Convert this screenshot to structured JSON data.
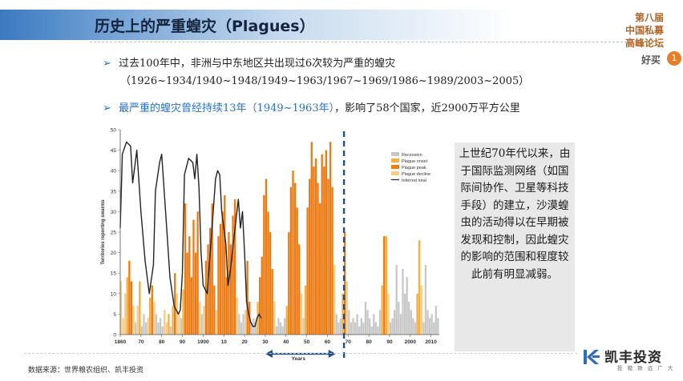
{
  "header": {
    "title": "历史上的严重蝗灾（Plagues）",
    "event_name_lines": [
      "第八届",
      "中国私募",
      "高峰论坛"
    ],
    "event_sub": "好买",
    "event_badge": "1"
  },
  "bullets": {
    "b1_line1": "过去100年中，非洲与中东地区共出现过6次较为严重的蝗灾",
    "b1_line2": "（1926~1934/1940~1948/1949~1963/1967~1969/1986~1989/2003~2005）",
    "b2_highlight": "最严重的蝗灾曾经持续13年（1949~1963年）",
    "b2_rest": "，影响了58个国家，近2900万平方公里",
    "marker": "➢"
  },
  "note": {
    "text": "上世纪70年代以来，由于国际监测网络（如国际间协作、卫星等科技手段）的建立，沙漠蝗虫的活动得以在早期被发现和控制，因此蝗灾的影响的范围和程度较此前有明显减弱。"
  },
  "footer": {
    "source": "数据来源：世界粮农组织、凯丰投资",
    "logo_name": "凯丰投资",
    "logo_tag": "投 稳 致 远 广 大"
  },
  "chart_data": {
    "type": "bar",
    "ylabel": "Territories reporting swarms",
    "xlabel": "Years",
    "ylim": [
      0,
      50
    ],
    "yticks": [
      0,
      5,
      10,
      15,
      20,
      25,
      30,
      35,
      40,
      45,
      50
    ],
    "xlim": [
      1860,
      2014
    ],
    "xticks": [
      {
        "year": 1860,
        "label": "1860"
      },
      {
        "year": 1870,
        "label": "70"
      },
      {
        "year": 1880,
        "label": "80"
      },
      {
        "year": 1890,
        "label": "90"
      },
      {
        "year": 1900,
        "label": "1900"
      },
      {
        "year": 1910,
        "label": "10"
      },
      {
        "year": 1920,
        "label": "20"
      },
      {
        "year": 1930,
        "label": "30"
      },
      {
        "year": 1940,
        "label": "40"
      },
      {
        "year": 1950,
        "label": "50"
      },
      {
        "year": 1960,
        "label": "60"
      },
      {
        "year": 1970,
        "label": "70"
      },
      {
        "year": 1980,
        "label": "80"
      },
      {
        "year": 1990,
        "label": "90"
      },
      {
        "year": 2000,
        "label": "2000"
      },
      {
        "year": 2010,
        "label": "2010"
      }
    ],
    "legend": [
      {
        "name": "Recession",
        "color": "#c8c8c8"
      },
      {
        "name": "Plague onset",
        "color": "#f6ae3c"
      },
      {
        "name": "Plague peak",
        "color": "#f07a12"
      },
      {
        "name": "Plague decline",
        "color": "#f8cd8a"
      },
      {
        "name": "Inferred total",
        "color": "#222222"
      }
    ],
    "legend_position": "top-right",
    "bars": [
      {
        "year": 1860,
        "value": 13,
        "phase": "Plague decline"
      },
      {
        "year": 1861,
        "value": 4,
        "phase": "Plague decline"
      },
      {
        "year": 1862,
        "value": 10,
        "phase": "Plague decline"
      },
      {
        "year": 1863,
        "value": 14,
        "phase": "Plague onset"
      },
      {
        "year": 1864,
        "value": 18,
        "phase": "Plague peak"
      },
      {
        "year": 1865,
        "value": 13,
        "phase": "Plague peak"
      },
      {
        "year": 1866,
        "value": 7,
        "phase": "Plague decline"
      },
      {
        "year": 1867,
        "value": 3,
        "phase": "Recession"
      },
      {
        "year": 1868,
        "value": 7,
        "phase": "Plague decline"
      },
      {
        "year": 1869,
        "value": 13,
        "phase": "Plague onset"
      },
      {
        "year": 1870,
        "value": 2,
        "phase": "Recession"
      },
      {
        "year": 1871,
        "value": 5,
        "phase": "Recession"
      },
      {
        "year": 1872,
        "value": 3,
        "phase": "Recession"
      },
      {
        "year": 1873,
        "value": 4,
        "phase": "Plague decline"
      },
      {
        "year": 1874,
        "value": 9,
        "phase": "Plague onset"
      },
      {
        "year": 1875,
        "value": 12,
        "phase": "Plague peak"
      },
      {
        "year": 1876,
        "value": 8,
        "phase": "Plague decline"
      },
      {
        "year": 1877,
        "value": 5,
        "phase": "Recession"
      },
      {
        "year": 1878,
        "value": 3,
        "phase": "Recession"
      },
      {
        "year": 1879,
        "value": 4,
        "phase": "Recession"
      },
      {
        "year": 1880,
        "value": 2,
        "phase": "Recession"
      },
      {
        "year": 1881,
        "value": 6,
        "phase": "Plague decline"
      },
      {
        "year": 1882,
        "value": 3,
        "phase": "Plague decline"
      },
      {
        "year": 1883,
        "value": 5,
        "phase": "Plague onset"
      },
      {
        "year": 1884,
        "value": 2,
        "phase": "Recession"
      },
      {
        "year": 1885,
        "value": 7,
        "phase": "Plague onset"
      },
      {
        "year": 1886,
        "value": 15,
        "phase": "Plague peak"
      },
      {
        "year": 1887,
        "value": 10,
        "phase": "Plague decline"
      },
      {
        "year": 1888,
        "value": 5,
        "phase": "Plague decline"
      },
      {
        "year": 1889,
        "value": 4,
        "phase": "Recession"
      },
      {
        "year": 1890,
        "value": 11,
        "phase": "Plague onset"
      },
      {
        "year": 1891,
        "value": 32,
        "phase": "Plague peak"
      },
      {
        "year": 1892,
        "value": 20,
        "phase": "Plague peak"
      },
      {
        "year": 1893,
        "value": 24,
        "phase": "Plague peak"
      },
      {
        "year": 1894,
        "value": 14,
        "phase": "Plague peak"
      },
      {
        "year": 1895,
        "value": 28,
        "phase": "Plague peak"
      },
      {
        "year": 1896,
        "value": 20,
        "phase": "Plague peak"
      },
      {
        "year": 1897,
        "value": 30,
        "phase": "Plague peak"
      },
      {
        "year": 1898,
        "value": 8,
        "phase": "Plague decline"
      },
      {
        "year": 1899,
        "value": 5,
        "phase": "Recession"
      },
      {
        "year": 1900,
        "value": 7,
        "phase": "Plague decline"
      },
      {
        "year": 1901,
        "value": 18,
        "phase": "Plague peak"
      },
      {
        "year": 1902,
        "value": 22,
        "phase": "Plague peak"
      },
      {
        "year": 1903,
        "value": 26,
        "phase": "Plague peak"
      },
      {
        "year": 1904,
        "value": 32,
        "phase": "Plague peak"
      },
      {
        "year": 1905,
        "value": 12,
        "phase": "Plague peak"
      },
      {
        "year": 1906,
        "value": 6,
        "phase": "Plague decline"
      },
      {
        "year": 1907,
        "value": 24,
        "phase": "Plague peak"
      },
      {
        "year": 1908,
        "value": 27,
        "phase": "Plague peak"
      },
      {
        "year": 1909,
        "value": 30,
        "phase": "Plague peak"
      },
      {
        "year": 1910,
        "value": 34,
        "phase": "Plague peak"
      },
      {
        "year": 1911,
        "value": 14,
        "phase": "Plague peak"
      },
      {
        "year": 1912,
        "value": 25,
        "phase": "Plague peak"
      },
      {
        "year": 1913,
        "value": 22,
        "phase": "Plague peak"
      },
      {
        "year": 1914,
        "value": 29,
        "phase": "Plague peak"
      },
      {
        "year": 1915,
        "value": 33,
        "phase": "Plague peak"
      },
      {
        "year": 1916,
        "value": 9,
        "phase": "Plague decline"
      },
      {
        "year": 1917,
        "value": 5,
        "phase": "Recession"
      },
      {
        "year": 1918,
        "value": 3,
        "phase": "Recession"
      },
      {
        "year": 1919,
        "value": 5,
        "phase": "Recession"
      },
      {
        "year": 1920,
        "value": 6,
        "phase": "Plague decline"
      },
      {
        "year": 1921,
        "value": 18,
        "phase": "Plague peak"
      },
      {
        "year": 1922,
        "value": 8,
        "phase": "Plague peak"
      },
      {
        "year": 1923,
        "value": 3,
        "phase": "Recession"
      },
      {
        "year": 1924,
        "value": 4,
        "phase": "Recession"
      },
      {
        "year": 1925,
        "value": 3,
        "phase": "Recession"
      },
      {
        "year": 1926,
        "value": 8,
        "phase": "Plague onset"
      },
      {
        "year": 1927,
        "value": 14,
        "phase": "Plague peak"
      },
      {
        "year": 1928,
        "value": 19,
        "phase": "Plague peak"
      },
      {
        "year": 1929,
        "value": 34,
        "phase": "Plague peak"
      },
      {
        "year": 1930,
        "value": 38,
        "phase": "Plague peak"
      },
      {
        "year": 1931,
        "value": 30,
        "phase": "Plague peak"
      },
      {
        "year": 1932,
        "value": 25,
        "phase": "Plague peak"
      },
      {
        "year": 1933,
        "value": 16,
        "phase": "Plague peak"
      },
      {
        "year": 1934,
        "value": 8,
        "phase": "Plague decline"
      },
      {
        "year": 1935,
        "value": 2,
        "phase": "Recession"
      },
      {
        "year": 1936,
        "value": 4,
        "phase": "Recession"
      },
      {
        "year": 1937,
        "value": 3,
        "phase": "Recession"
      },
      {
        "year": 1938,
        "value": 2,
        "phase": "Recession"
      },
      {
        "year": 1939,
        "value": 4,
        "phase": "Recession"
      },
      {
        "year": 1940,
        "value": 7,
        "phase": "Plague onset"
      },
      {
        "year": 1941,
        "value": 25,
        "phase": "Plague peak"
      },
      {
        "year": 1942,
        "value": 36,
        "phase": "Plague peak"
      },
      {
        "year": 1943,
        "value": 40,
        "phase": "Plague peak"
      },
      {
        "year": 1944,
        "value": 37,
        "phase": "Plague peak"
      },
      {
        "year": 1945,
        "value": 31,
        "phase": "Plague peak"
      },
      {
        "year": 1946,
        "value": 22,
        "phase": "Plague peak"
      },
      {
        "year": 1947,
        "value": 10,
        "phase": "Plague decline"
      },
      {
        "year": 1948,
        "value": 4,
        "phase": "Recession"
      },
      {
        "year": 1949,
        "value": 12,
        "phase": "Plague onset"
      },
      {
        "year": 1950,
        "value": 31,
        "phase": "Plague peak"
      },
      {
        "year": 1951,
        "value": 38,
        "phase": "Plague peak"
      },
      {
        "year": 1952,
        "value": 47,
        "phase": "Plague peak"
      },
      {
        "year": 1953,
        "value": 41,
        "phase": "Plague peak"
      },
      {
        "year": 1954,
        "value": 43,
        "phase": "Plague peak"
      },
      {
        "year": 1955,
        "value": 37,
        "phase": "Plague peak"
      },
      {
        "year": 1956,
        "value": 32,
        "phase": "Plague peak"
      },
      {
        "year": 1957,
        "value": 44,
        "phase": "Plague peak"
      },
      {
        "year": 1958,
        "value": 41,
        "phase": "Plague peak"
      },
      {
        "year": 1959,
        "value": 45,
        "phase": "Plague peak"
      },
      {
        "year": 1960,
        "value": 38,
        "phase": "Plague peak"
      },
      {
        "year": 1961,
        "value": 47,
        "phase": "Plague peak"
      },
      {
        "year": 1962,
        "value": 36,
        "phase": "Plague peak"
      },
      {
        "year": 1963,
        "value": 17,
        "phase": "Plague decline"
      },
      {
        "year": 1964,
        "value": 5,
        "phase": "Recession"
      },
      {
        "year": 1965,
        "value": 3,
        "phase": "Recession"
      },
      {
        "year": 1966,
        "value": 4,
        "phase": "Recession"
      },
      {
        "year": 1967,
        "value": 10,
        "phase": "Plague onset"
      },
      {
        "year": 1968,
        "value": 25,
        "phase": "Plague peak"
      },
      {
        "year": 1969,
        "value": 13,
        "phase": "Plague decline"
      },
      {
        "year": 1970,
        "value": 6,
        "phase": "Recession"
      },
      {
        "year": 1971,
        "value": 3,
        "phase": "Recession"
      },
      {
        "year": 1972,
        "value": 4,
        "phase": "Recession"
      },
      {
        "year": 1973,
        "value": 3,
        "phase": "Recession"
      },
      {
        "year": 1974,
        "value": 5,
        "phase": "Recession"
      },
      {
        "year": 1975,
        "value": 2,
        "phase": "Recession"
      },
      {
        "year": 1976,
        "value": 4,
        "phase": "Recession"
      },
      {
        "year": 1977,
        "value": 3,
        "phase": "Recession"
      },
      {
        "year": 1978,
        "value": 8,
        "phase": "Recession"
      },
      {
        "year": 1979,
        "value": 6,
        "phase": "Recession"
      },
      {
        "year": 1980,
        "value": 4,
        "phase": "Recession"
      },
      {
        "year": 1981,
        "value": 2,
        "phase": "Recession"
      },
      {
        "year": 1982,
        "value": 5,
        "phase": "Recession"
      },
      {
        "year": 1983,
        "value": 3,
        "phase": "Recession"
      },
      {
        "year": 1984,
        "value": 2,
        "phase": "Recession"
      },
      {
        "year": 1985,
        "value": 6,
        "phase": "Recession"
      },
      {
        "year": 1986,
        "value": 12,
        "phase": "Plague onset"
      },
      {
        "year": 1987,
        "value": 24,
        "phase": "Plague peak"
      },
      {
        "year": 1988,
        "value": 24,
        "phase": "Plague onset"
      },
      {
        "year": 1989,
        "value": 10,
        "phase": "Plague decline"
      },
      {
        "year": 1990,
        "value": 3,
        "phase": "Recession"
      },
      {
        "year": 1991,
        "value": 4,
        "phase": "Recession"
      },
      {
        "year": 1992,
        "value": 6,
        "phase": "Recession"
      },
      {
        "year": 1993,
        "value": 17,
        "phase": "Recession"
      },
      {
        "year": 1994,
        "value": 8,
        "phase": "Recession"
      },
      {
        "year": 1995,
        "value": 5,
        "phase": "Recession"
      },
      {
        "year": 1996,
        "value": 16,
        "phase": "Recession"
      },
      {
        "year": 1997,
        "value": 10,
        "phase": "Recession"
      },
      {
        "year": 1998,
        "value": 14,
        "phase": "Recession"
      },
      {
        "year": 1999,
        "value": 8,
        "phase": "Recession"
      },
      {
        "year": 2000,
        "value": 6,
        "phase": "Recession"
      },
      {
        "year": 2001,
        "value": 4,
        "phase": "Recession"
      },
      {
        "year": 2002,
        "value": 3,
        "phase": "Recession"
      },
      {
        "year": 2003,
        "value": 10,
        "phase": "Plague onset"
      },
      {
        "year": 2004,
        "value": 23,
        "phase": "Plague onset"
      },
      {
        "year": 2005,
        "value": 12,
        "phase": "Plague decline"
      },
      {
        "year": 2006,
        "value": 3,
        "phase": "Recession"
      },
      {
        "year": 2007,
        "value": 17,
        "phase": "Recession"
      },
      {
        "year": 2008,
        "value": 6,
        "phase": "Recession"
      },
      {
        "year": 2009,
        "value": 4,
        "phase": "Recession"
      },
      {
        "year": 2010,
        "value": 5,
        "phase": "Recession"
      },
      {
        "year": 2011,
        "value": 3,
        "phase": "Recession"
      },
      {
        "year": 2012,
        "value": 7,
        "phase": "Recession"
      },
      {
        "year": 2013,
        "value": 4,
        "phase": "Recession"
      }
    ],
    "inferred_total": {
      "name": "Inferred total",
      "x": [
        1860,
        1861,
        1863,
        1865,
        1866,
        1868,
        1870,
        1872,
        1874,
        1876,
        1877,
        1879,
        1880,
        1882,
        1884,
        1886,
        1888,
        1889,
        1890,
        1891,
        1893,
        1895,
        1896,
        1897,
        1898,
        1899,
        1900,
        1902,
        1904,
        1906,
        1907,
        1908,
        1909,
        1911,
        1912,
        1913,
        1915,
        1917,
        1918,
        1919,
        1920,
        1921,
        1922,
        1923,
        1924,
        1925,
        1926,
        1927,
        1928
      ],
      "y": [
        26,
        44,
        47,
        46,
        37,
        45,
        30,
        18,
        10,
        17,
        35,
        42,
        44,
        29,
        14,
        7,
        5,
        6,
        15,
        39,
        43,
        42,
        38,
        44,
        36,
        20,
        12,
        10,
        24,
        38,
        40,
        39,
        30,
        22,
        12,
        15,
        24,
        33,
        26,
        30,
        20,
        8,
        5,
        3,
        2,
        2,
        4,
        5,
        4
      ]
    },
    "divider_year": 1968,
    "span_arrow": {
      "from": 1930,
      "to": 1964
    }
  }
}
